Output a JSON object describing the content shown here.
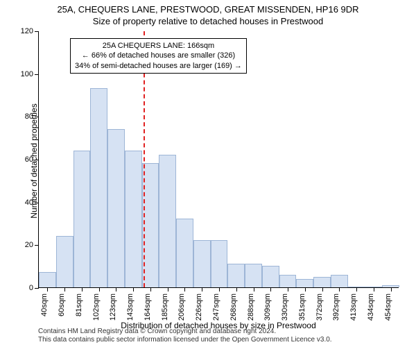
{
  "title_main": "25A, CHEQUERS LANE, PRESTWOOD, GREAT MISSENDEN, HP16 9DR",
  "title_sub": "Size of property relative to detached houses in Prestwood",
  "y_axis_title": "Number of detached properties",
  "x_axis_title": "Distribution of detached houses by size in Prestwood",
  "annotation": {
    "line1": "25A CHEQUERS LANE: 166sqm",
    "line2": "← 66% of detached houses are smaller (326)",
    "line3": "34% of semi-detached houses are larger (169) →"
  },
  "chart": {
    "type": "histogram",
    "ylim": [
      0,
      120
    ],
    "ytick_step": 20,
    "yticks": [
      0,
      20,
      40,
      60,
      80,
      100,
      120
    ],
    "categories": [
      "40sqm",
      "60sqm",
      "81sqm",
      "102sqm",
      "123sqm",
      "143sqm",
      "164sqm",
      "185sqm",
      "206sqm",
      "226sqm",
      "247sqm",
      "268sqm",
      "288sqm",
      "309sqm",
      "330sqm",
      "351sqm",
      "372sqm",
      "392sqm",
      "413sqm",
      "434sqm",
      "454sqm"
    ],
    "values": [
      7,
      24,
      64,
      93,
      74,
      64,
      58,
      62,
      32,
      22,
      22,
      11,
      11,
      10,
      6,
      4,
      5,
      6,
      0,
      0,
      1
    ],
    "bar_fill": "#d6e2f3",
    "bar_stroke": "#9db5d6",
    "marker_color": "#e02020",
    "marker_index": 6.1,
    "background_color": "#ffffff"
  },
  "footer": {
    "line1": "Contains HM Land Registry data © Crown copyright and database right 2024.",
    "line2": "This data contains public sector information licensed under the Open Government Licence v3.0."
  }
}
